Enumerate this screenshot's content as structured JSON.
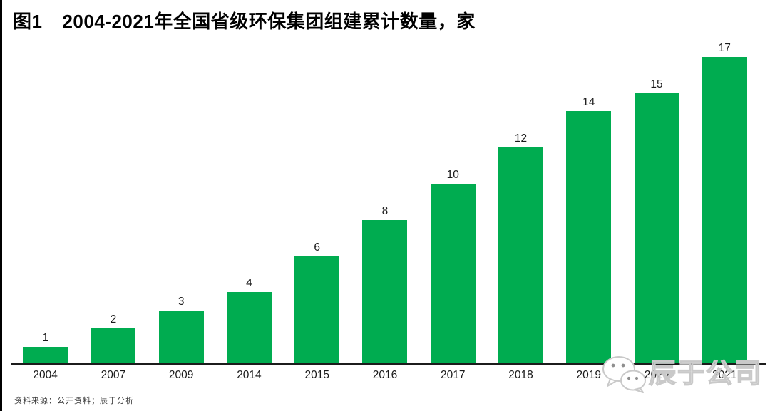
{
  "header": {
    "figure_label": "图1",
    "title": "2004-2021年全国省级环保集团组建累计数量，家"
  },
  "chart_data": {
    "type": "bar",
    "title": "图1 2004-2021年全国省级环保集团组建累计数量，家",
    "categories": [
      "2004",
      "2007",
      "2009",
      "2014",
      "2015",
      "2016",
      "2017",
      "2018",
      "2019",
      "2020",
      "2021"
    ],
    "values": [
      1,
      2,
      3,
      4,
      6,
      8,
      10,
      12,
      14,
      15,
      17
    ],
    "bar_color": "#00AC50",
    "value_label_color": "#1a1a1a",
    "axis_color": "#1c1c1c",
    "ylim": [
      0,
      17
    ],
    "grid": false,
    "legend": "none",
    "value_labels_shown": true,
    "xlabel": "",
    "ylabel": ""
  },
  "footer": {
    "source_note": "资料来源：公开资料；辰于分析"
  },
  "watermark": {
    "brand": "辰于公司",
    "icon": "wechat-icon",
    "color": "#c9c9c9"
  }
}
